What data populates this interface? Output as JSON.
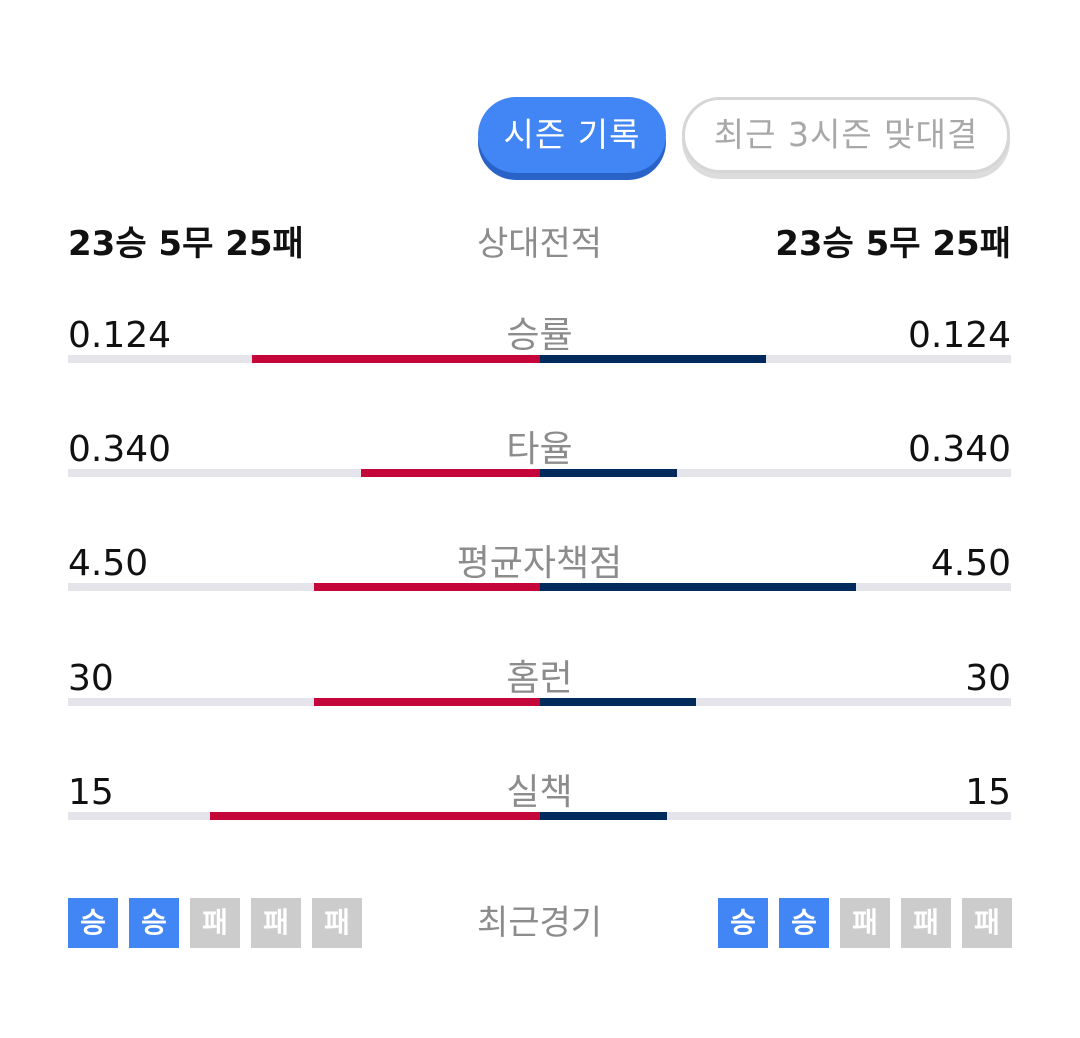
{
  "tabs": {
    "season": "시즌 기록",
    "recent3": "최근 3시즌 맞대결"
  },
  "summary": {
    "left": "23승 5무 25패",
    "label": "상대전적",
    "right": "23승 5무 25패"
  },
  "colors": {
    "left_team": "#c4063b",
    "right_team": "#012a5c",
    "win": "#4285f4",
    "loss": "#cccccd"
  },
  "stats": [
    {
      "label": "승률",
      "left": "0.124",
      "right": "0.124",
      "left_fill": 0.61,
      "right_fill": 0.48
    },
    {
      "label": "타율",
      "left": "0.340",
      "right": "0.340",
      "left_fill": 0.38,
      "right_fill": 0.29
    },
    {
      "label": "평균자책점",
      "left": "4.50",
      "right": "4.50",
      "left_fill": 0.48,
      "right_fill": 0.67
    },
    {
      "label": "홈런",
      "left": "30",
      "right": "30",
      "left_fill": 0.48,
      "right_fill": 0.33
    },
    {
      "label": "실책",
      "left": "15",
      "right": "15",
      "left_fill": 0.7,
      "right_fill": 0.27
    }
  ],
  "recent": {
    "label": "최근경기",
    "left": [
      {
        "text": "승",
        "type": "win"
      },
      {
        "text": "승",
        "type": "win"
      },
      {
        "text": "패",
        "type": "loss"
      },
      {
        "text": "패",
        "type": "loss"
      },
      {
        "text": "패",
        "type": "loss"
      }
    ],
    "right": [
      {
        "text": "승",
        "type": "win"
      },
      {
        "text": "승",
        "type": "win"
      },
      {
        "text": "패",
        "type": "loss"
      },
      {
        "text": "패",
        "type": "loss"
      },
      {
        "text": "패",
        "type": "loss"
      }
    ]
  }
}
